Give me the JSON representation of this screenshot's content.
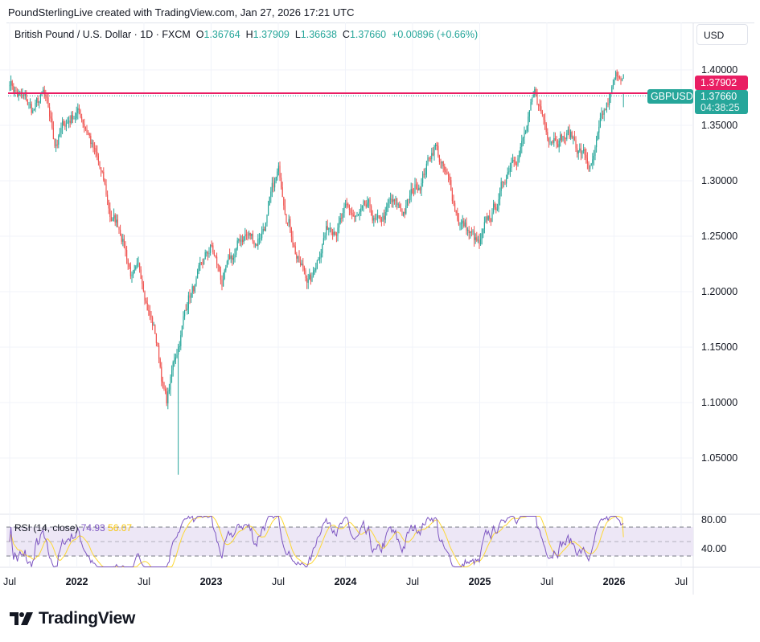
{
  "caption": "PoundSterlingLive created with TradingView.com, Jan 27, 2026 17:21 UTC",
  "legend": {
    "symbol": "British Pound / U.S. Dollar · 1D · FXCM",
    "o_label": "O",
    "o": "1.36764",
    "h_label": "H",
    "h": "1.37909",
    "l_label": "L",
    "l": "1.36638",
    "c_label": "C",
    "c": "1.37660",
    "change": "+0.00896 (+0.66%)"
  },
  "currency_button": "USD",
  "price_tags": {
    "line_price": "1.37902",
    "symbol": "GBPUSD",
    "last_price": "1.37660",
    "countdown": "04:38:25"
  },
  "rsi_legend": {
    "label": "RSI (14, close)",
    "rsi": "74.93",
    "ma": "56.07"
  },
  "logo_text": "TradingView",
  "colors": {
    "up": "#26a69a",
    "down": "#ef5350",
    "hline": "#e91e63",
    "rsi": "#7e57c2",
    "rsi_ma": "#fdd835",
    "rsi_band": "#ede7f6"
  },
  "chart_data": {
    "type": "candlestick",
    "title": "British Pound / U.S. Dollar · 1D · FXCM",
    "y_ticks": [
      "1.40000",
      "1.35000",
      "1.30000",
      "1.25000",
      "1.20000",
      "1.15000",
      "1.10000",
      "1.05000"
    ],
    "ylim": [
      1.02,
      1.42
    ],
    "x_ticks": [
      "Jul",
      "2022",
      "Jul",
      "2023",
      "Jul",
      "2024",
      "Jul",
      "2025",
      "Jul",
      "2026",
      "Jul"
    ],
    "horizontal_line": 1.37902,
    "monthly_closes": {
      "months": [
        "2021-07",
        "2021-08",
        "2021-09",
        "2021-10",
        "2021-11",
        "2021-12",
        "2022-01",
        "2022-02",
        "2022-03",
        "2022-04",
        "2022-05",
        "2022-06",
        "2022-07",
        "2022-08",
        "2022-09",
        "2022-10",
        "2022-11",
        "2022-12",
        "2023-01",
        "2023-02",
        "2023-03",
        "2023-04",
        "2023-05",
        "2023-06",
        "2023-07",
        "2023-08",
        "2023-09",
        "2023-10",
        "2023-11",
        "2023-12",
        "2024-01",
        "2024-02",
        "2024-03",
        "2024-04",
        "2024-05",
        "2024-06",
        "2024-07",
        "2024-08",
        "2024-09",
        "2024-10",
        "2024-11",
        "2024-12",
        "2025-01",
        "2025-02",
        "2025-03",
        "2025-04",
        "2025-05",
        "2025-06",
        "2025-07",
        "2025-08",
        "2025-09",
        "2025-10",
        "2025-11",
        "2025-12",
        "2026-01"
      ],
      "values": [
        1.392,
        1.375,
        1.36,
        1.372,
        1.33,
        1.35,
        1.365,
        1.35,
        1.31,
        1.265,
        1.255,
        1.215,
        1.205,
        1.165,
        1.1,
        1.15,
        1.2,
        1.21,
        1.235,
        1.205,
        1.225,
        1.25,
        1.245,
        1.27,
        1.3,
        1.27,
        1.225,
        1.21,
        1.255,
        1.27,
        1.27,
        1.262,
        1.262,
        1.25,
        1.272,
        1.265,
        1.285,
        1.31,
        1.338,
        1.3,
        1.27,
        1.255,
        1.235,
        1.26,
        1.29,
        1.33,
        1.345,
        1.37,
        1.345,
        1.352,
        1.345,
        1.33,
        1.31,
        1.345,
        1.3766
      ]
    },
    "rsi": {
      "name": "RSI (14, close)",
      "y_ticks": [
        "80.00",
        "40.00"
      ],
      "bands": [
        70,
        50,
        30
      ],
      "last_rsi": 74.93,
      "last_ma": 56.07
    }
  }
}
